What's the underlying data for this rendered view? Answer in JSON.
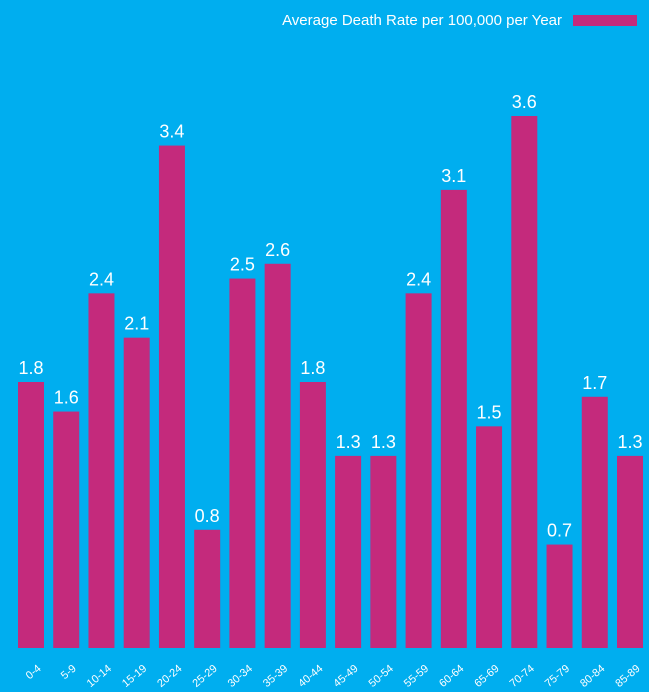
{
  "chart_data": {
    "type": "bar",
    "categories": [
      "0-4",
      "5-9",
      "10-14",
      "15-19",
      "20-24",
      "25-29",
      "30-34",
      "35-39",
      "40-44",
      "45-49",
      "50-54",
      "55-59",
      "60-64",
      "65-69",
      "70-74",
      "75-79",
      "80-84",
      "85-89"
    ],
    "series": [
      {
        "name": "Average Death Rate per 100,000 per Year",
        "color": "#c42a7c",
        "values": [
          1.8,
          1.6,
          2.4,
          2.1,
          3.4,
          0.8,
          2.5,
          2.6,
          1.8,
          1.3,
          1.3,
          2.4,
          3.1,
          1.5,
          3.6,
          0.7,
          1.7,
          1.3
        ]
      }
    ],
    "legend": "top-right"
  }
}
